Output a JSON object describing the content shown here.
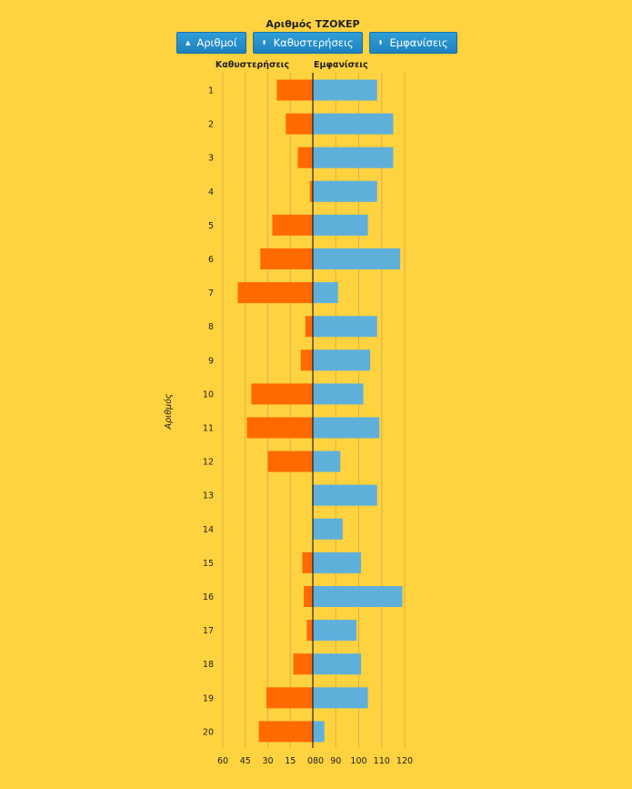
{
  "title": "Αριθμός ΤΖΟΚΕΡ",
  "buttons": [
    {
      "label": "Αριθμοί",
      "icon": "sort-asc-icon",
      "glyph": "▲"
    },
    {
      "label": "Καθυστερήσεις",
      "icon": "sort-icon",
      "glyph": "⬍"
    },
    {
      "label": "Εμφανίσεις",
      "icon": "sort-icon",
      "glyph": "⬍"
    }
  ],
  "colors": {
    "background": "#ffd23f",
    "delays": "#ff6a00",
    "appearances": "#5eb0da",
    "grid": "#d9b24a",
    "button": "#2b93d1"
  },
  "chart_data": {
    "type": "bar",
    "orientation": "horizontal-diverging",
    "ylabel": "Αριθμός",
    "categories": [
      "1",
      "2",
      "3",
      "4",
      "5",
      "6",
      "7",
      "8",
      "9",
      "10",
      "11",
      "12",
      "13",
      "14",
      "15",
      "16",
      "17",
      "18",
      "19",
      "20"
    ],
    "series": [
      {
        "name": "Καθυστερήσεις",
        "side": "left",
        "values": [
          24,
          18,
          10,
          2,
          27,
          35,
          50,
          5,
          8,
          41,
          44,
          30,
          0.5,
          0,
          7,
          6,
          4,
          13,
          31,
          36
        ],
        "ticks": [
          "60",
          "45",
          "30",
          "15",
          "0"
        ],
        "range": [
          0,
          60
        ]
      },
      {
        "name": "Εμφανίσεις",
        "side": "right",
        "values": [
          108,
          115,
          115,
          108,
          104,
          118,
          91,
          108,
          105,
          102,
          109,
          92,
          108,
          93,
          101,
          119,
          99,
          101,
          104,
          85
        ],
        "ticks": [
          "80",
          "90",
          "100",
          "110",
          "120"
        ],
        "range": [
          80,
          120
        ]
      }
    ],
    "grid": true
  }
}
